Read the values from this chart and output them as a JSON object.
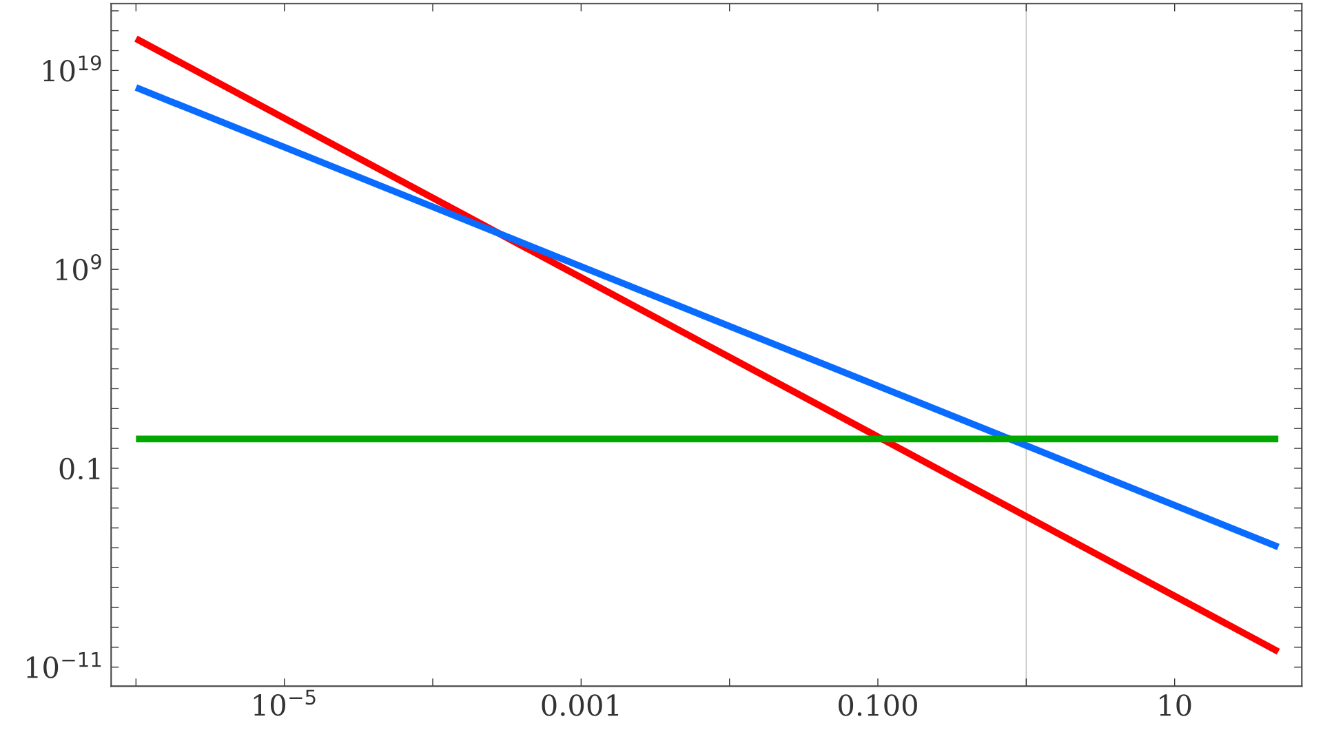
{
  "chart_data": {
    "type": "line",
    "log": "xy",
    "grid": false,
    "line_style": "solid",
    "marker": "none",
    "xlim": [
      6.8e-07,
      72
    ],
    "ylim": [
      1.1e-12,
      2.3e+22
    ],
    "xticks": [
      {
        "value": 1e-06,
        "label": null
      },
      {
        "value": 1e-05,
        "label": "10$^{−5}$"
      },
      {
        "value": 0.0001,
        "label": null
      },
      {
        "value": 0.001,
        "label": "0.001"
      },
      {
        "value": 0.01,
        "label": null
      },
      {
        "value": 0.1,
        "label": "0.100"
      },
      {
        "value": 1,
        "label": null
      },
      {
        "value": 10,
        "label": "10"
      }
    ],
    "yticks": [
      {
        "value": 1e-11,
        "label": "10$^{−11}$"
      },
      {
        "value": 1e-10,
        "label": null
      },
      {
        "value": 1e-09,
        "label": null
      },
      {
        "value": 1e-08,
        "label": null
      },
      {
        "value": 1e-07,
        "label": null
      },
      {
        "value": 1e-06,
        "label": null
      },
      {
        "value": 1e-05,
        "label": null
      },
      {
        "value": 0.0001,
        "label": null
      },
      {
        "value": 0.001,
        "label": null
      },
      {
        "value": 0.01,
        "label": null
      },
      {
        "value": 0.1,
        "label": "0.1"
      },
      {
        "value": 1,
        "label": null
      },
      {
        "value": 10,
        "label": null
      },
      {
        "value": 100,
        "label": null
      },
      {
        "value": 1000.0,
        "label": null
      },
      {
        "value": 10000.0,
        "label": null
      },
      {
        "value": 100000.0,
        "label": null
      },
      {
        "value": 1000000.0,
        "label": null
      },
      {
        "value": 10000000.0,
        "label": null
      },
      {
        "value": 100000000.0,
        "label": null
      },
      {
        "value": 1000000000.0,
        "label": "10$^{9}$"
      },
      {
        "value": 10000000000.0,
        "label": null
      },
      {
        "value": 100000000000.0,
        "label": null
      },
      {
        "value": 1000000000000.0,
        "label": null
      },
      {
        "value": 10000000000000.0,
        "label": null
      },
      {
        "value": 100000000000000.0,
        "label": null
      },
      {
        "value": 1000000000000000.0,
        "label": null
      },
      {
        "value": 1e+16,
        "label": null
      },
      {
        "value": 1e+17,
        "label": null
      },
      {
        "value": 1e+18,
        "label": null
      },
      {
        "value": 1e+19,
        "label": "10$^{19}$"
      },
      {
        "value": 1e+20,
        "label": null
      },
      {
        "value": 1e+21,
        "label": null
      },
      {
        "value": 1e+22,
        "label": null
      }
    ],
    "ref_lines": [
      {
        "axis": "x",
        "value": 1,
        "color": "#c8c8c8",
        "line_style": "solid"
      }
    ],
    "x": [
      1e-06,
      50
    ],
    "series": [
      {
        "color": "#ff0000",
        "values": [
          4e+20,
          6e-11
        ]
      },
      {
        "color": "#0a6cff",
        "values": [
          1.4e+18,
          1.1e-05
        ]
      },
      {
        "color": "#00a800",
        "values": [
          3,
          3
        ]
      }
    ]
  }
}
